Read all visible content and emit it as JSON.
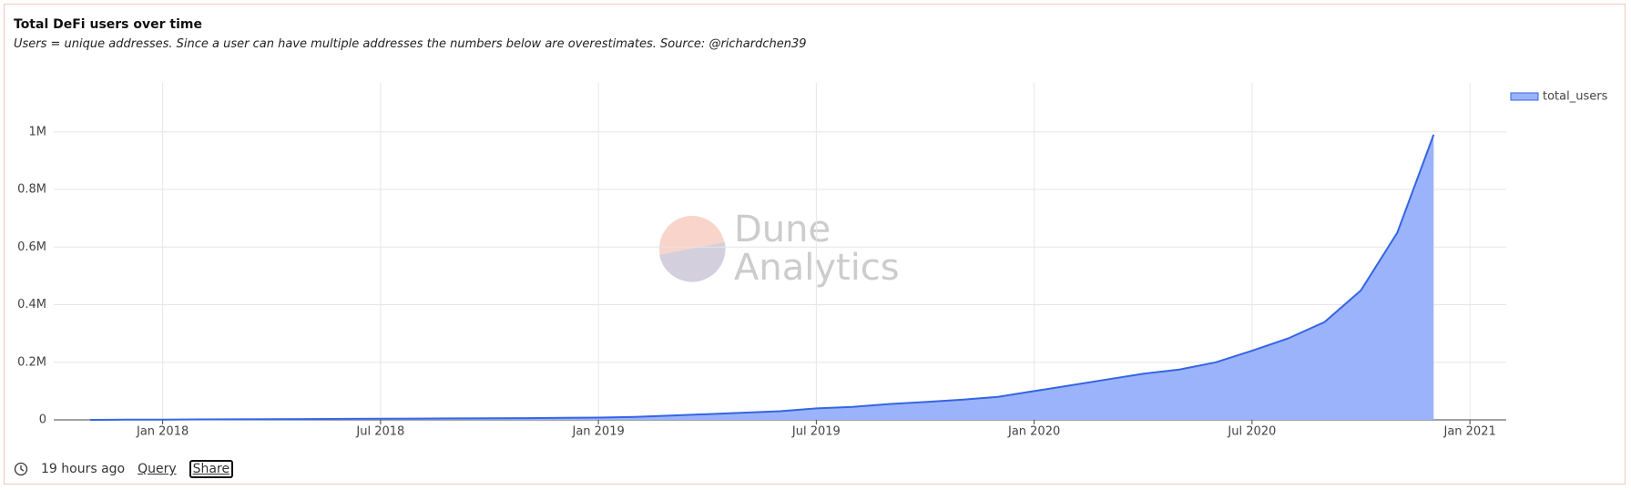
{
  "chart_data": {
    "type": "area",
    "title": "Total DeFi users over time",
    "subtitle": "Users = unique addresses. Since a user can have multiple addresses the numbers below are overestimates. Source: @richardchen39",
    "watermark": [
      "Dune",
      "Analytics"
    ],
    "x": [
      "2017-11",
      "2017-12",
      "2018-01",
      "2018-02",
      "2018-03",
      "2018-04",
      "2018-05",
      "2018-06",
      "2018-07",
      "2018-08",
      "2018-09",
      "2018-10",
      "2018-11",
      "2018-12",
      "2019-01",
      "2019-02",
      "2019-03",
      "2019-04",
      "2019-05",
      "2019-06",
      "2019-07",
      "2019-08",
      "2019-09",
      "2019-10",
      "2019-11",
      "2019-12",
      "2020-01",
      "2020-02",
      "2020-03",
      "2020-04",
      "2020-05",
      "2020-06",
      "2020-07",
      "2020-08",
      "2020-09",
      "2020-10",
      "2020-11",
      "2020-12"
    ],
    "series": [
      {
        "name": "total_users",
        "color": "#3565e3",
        "fill": "#9ab3fa",
        "values": [
          0,
          500,
          1000,
          1500,
          2000,
          2500,
          3000,
          3500,
          4000,
          4500,
          5000,
          5500,
          6000,
          7000,
          8000,
          10000,
          15000,
          20000,
          25000,
          30000,
          40000,
          45000,
          55000,
          62000,
          70000,
          80000,
          100000,
          120000,
          140000,
          160000,
          175000,
          200000,
          240000,
          283000,
          340000,
          450000,
          650000,
          990000
        ]
      }
    ],
    "xlim": [
      "2017-10",
      "2021-02"
    ],
    "xticks": [
      {
        "value": "2018-01",
        "label": "Jan 2018"
      },
      {
        "value": "2018-07",
        "label": "Jul 2018"
      },
      {
        "value": "2019-01",
        "label": "Jan 2019"
      },
      {
        "value": "2019-07",
        "label": "Jul 2019"
      },
      {
        "value": "2020-01",
        "label": "Jan 2020"
      },
      {
        "value": "2020-07",
        "label": "Jul 2020"
      },
      {
        "value": "2021-01",
        "label": "Jan 2021"
      }
    ],
    "ylim": [
      0,
      1170000
    ],
    "yticks": [
      0,
      {
        "value": 200000,
        "label": "0.2M"
      },
      {
        "value": 400000,
        "label": "0.4M"
      },
      {
        "value": 600000,
        "label": "0.6M"
      },
      {
        "value": 800000,
        "label": "0.8M"
      },
      {
        "value": 1000000,
        "label": "1M"
      }
    ],
    "grid": true,
    "legend": "top-right"
  },
  "footer": {
    "updated": "19 hours ago",
    "query": "Query",
    "share": "Share"
  }
}
